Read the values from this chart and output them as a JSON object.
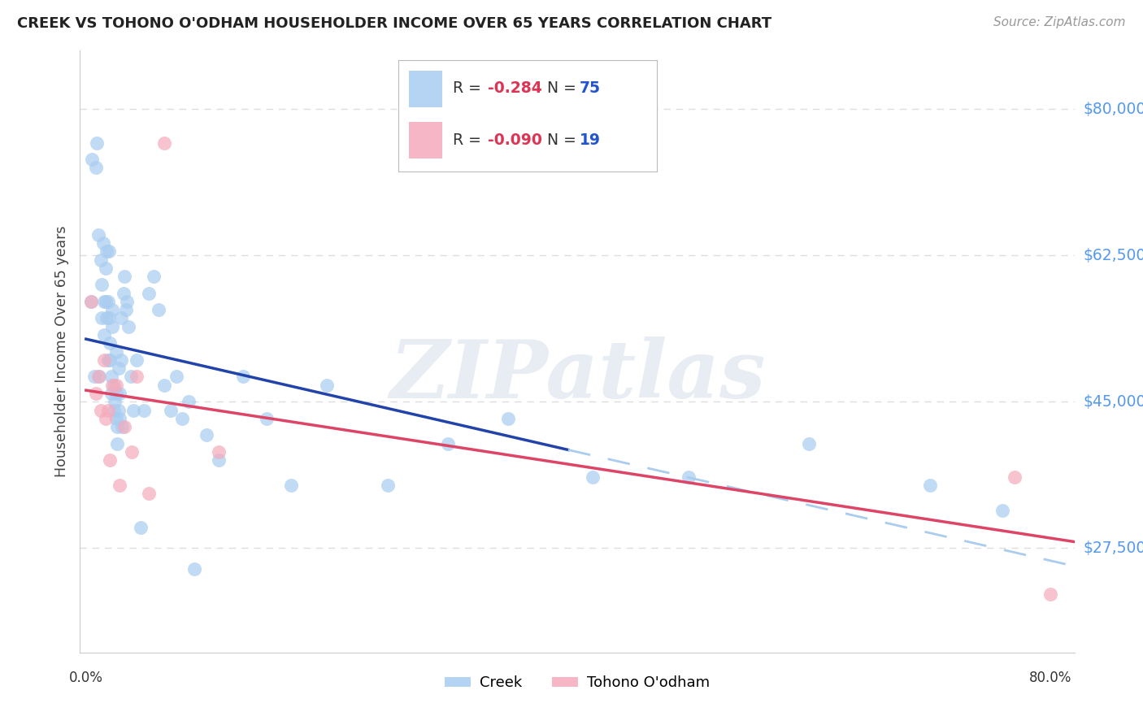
{
  "title": "CREEK VS TOHONO O'ODHAM HOUSEHOLDER INCOME OVER 65 YEARS CORRELATION CHART",
  "source": "Source: ZipAtlas.com",
  "ylabel": "Householder Income Over 65 years",
  "ytick_values": [
    80000,
    62500,
    45000,
    27500
  ],
  "ytick_labels": [
    "$80,000",
    "$62,500",
    "$45,000",
    "$27,500"
  ],
  "ymin": 15000,
  "ymax": 87000,
  "xmin": -0.5,
  "xmax": 82.0,
  "creek_color": "#A8CCF0",
  "tohono_color": "#F5AABB",
  "creek_line_color": "#2244AA",
  "tohono_line_color": "#DD4466",
  "dashed_line_color": "#AACCEE",
  "creek_R": -0.284,
  "creek_N": 75,
  "tohono_R": -0.09,
  "tohono_N": 19,
  "creek_x": [
    0.4,
    0.5,
    0.7,
    0.8,
    0.9,
    1.0,
    1.1,
    1.2,
    1.3,
    1.3,
    1.4,
    1.5,
    1.5,
    1.6,
    1.6,
    1.7,
    1.7,
    1.8,
    1.8,
    1.9,
    1.9,
    2.0,
    2.0,
    2.1,
    2.1,
    2.2,
    2.2,
    2.3,
    2.3,
    2.4,
    2.5,
    2.5,
    2.5,
    2.6,
    2.6,
    2.7,
    2.7,
    2.8,
    2.8,
    2.9,
    2.9,
    3.0,
    3.1,
    3.2,
    3.3,
    3.4,
    3.5,
    3.7,
    3.9,
    4.2,
    4.5,
    4.8,
    5.2,
    5.6,
    6.0,
    6.5,
    7.0,
    7.5,
    8.0,
    8.5,
    9.0,
    10.0,
    11.0,
    13.0,
    15.0,
    17.0,
    20.0,
    25.0,
    30.0,
    35.0,
    42.0,
    50.0,
    60.0,
    70.0,
    76.0
  ],
  "creek_y": [
    57000,
    74000,
    48000,
    73000,
    76000,
    65000,
    48000,
    62000,
    59000,
    55000,
    64000,
    57000,
    53000,
    61000,
    57000,
    63000,
    55000,
    50000,
    57000,
    63000,
    55000,
    50000,
    52000,
    46000,
    48000,
    54000,
    56000,
    44000,
    47000,
    45000,
    43000,
    51000,
    46000,
    40000,
    42000,
    49000,
    44000,
    46000,
    43000,
    50000,
    55000,
    42000,
    58000,
    60000,
    56000,
    57000,
    54000,
    48000,
    44000,
    50000,
    30000,
    44000,
    58000,
    60000,
    56000,
    47000,
    44000,
    48000,
    43000,
    45000,
    25000,
    41000,
    38000,
    48000,
    43000,
    35000,
    47000,
    35000,
    40000,
    43000,
    36000,
    36000,
    40000,
    35000,
    32000
  ],
  "tohono_x": [
    0.4,
    0.8,
    1.0,
    1.2,
    1.5,
    1.6,
    1.8,
    2.0,
    2.2,
    2.5,
    2.8,
    3.2,
    3.8,
    4.2,
    5.2,
    6.5,
    11.0,
    77.0,
    80.0
  ],
  "tohono_y": [
    57000,
    46000,
    48000,
    44000,
    50000,
    43000,
    44000,
    38000,
    47000,
    47000,
    35000,
    42000,
    39000,
    48000,
    34000,
    76000,
    39000,
    36000,
    22000
  ],
  "creek_line_solid_end": 40.0,
  "creek_line_dash_end": 82.0,
  "watermark_text": "ZIPatlas",
  "bg_color": "#FFFFFF",
  "grid_color": "#DDDDDD",
  "spine_color": "#CCCCCC",
  "ytick_color": "#5599EE",
  "title_color": "#222222",
  "source_color": "#999999",
  "label_color": "#444444"
}
